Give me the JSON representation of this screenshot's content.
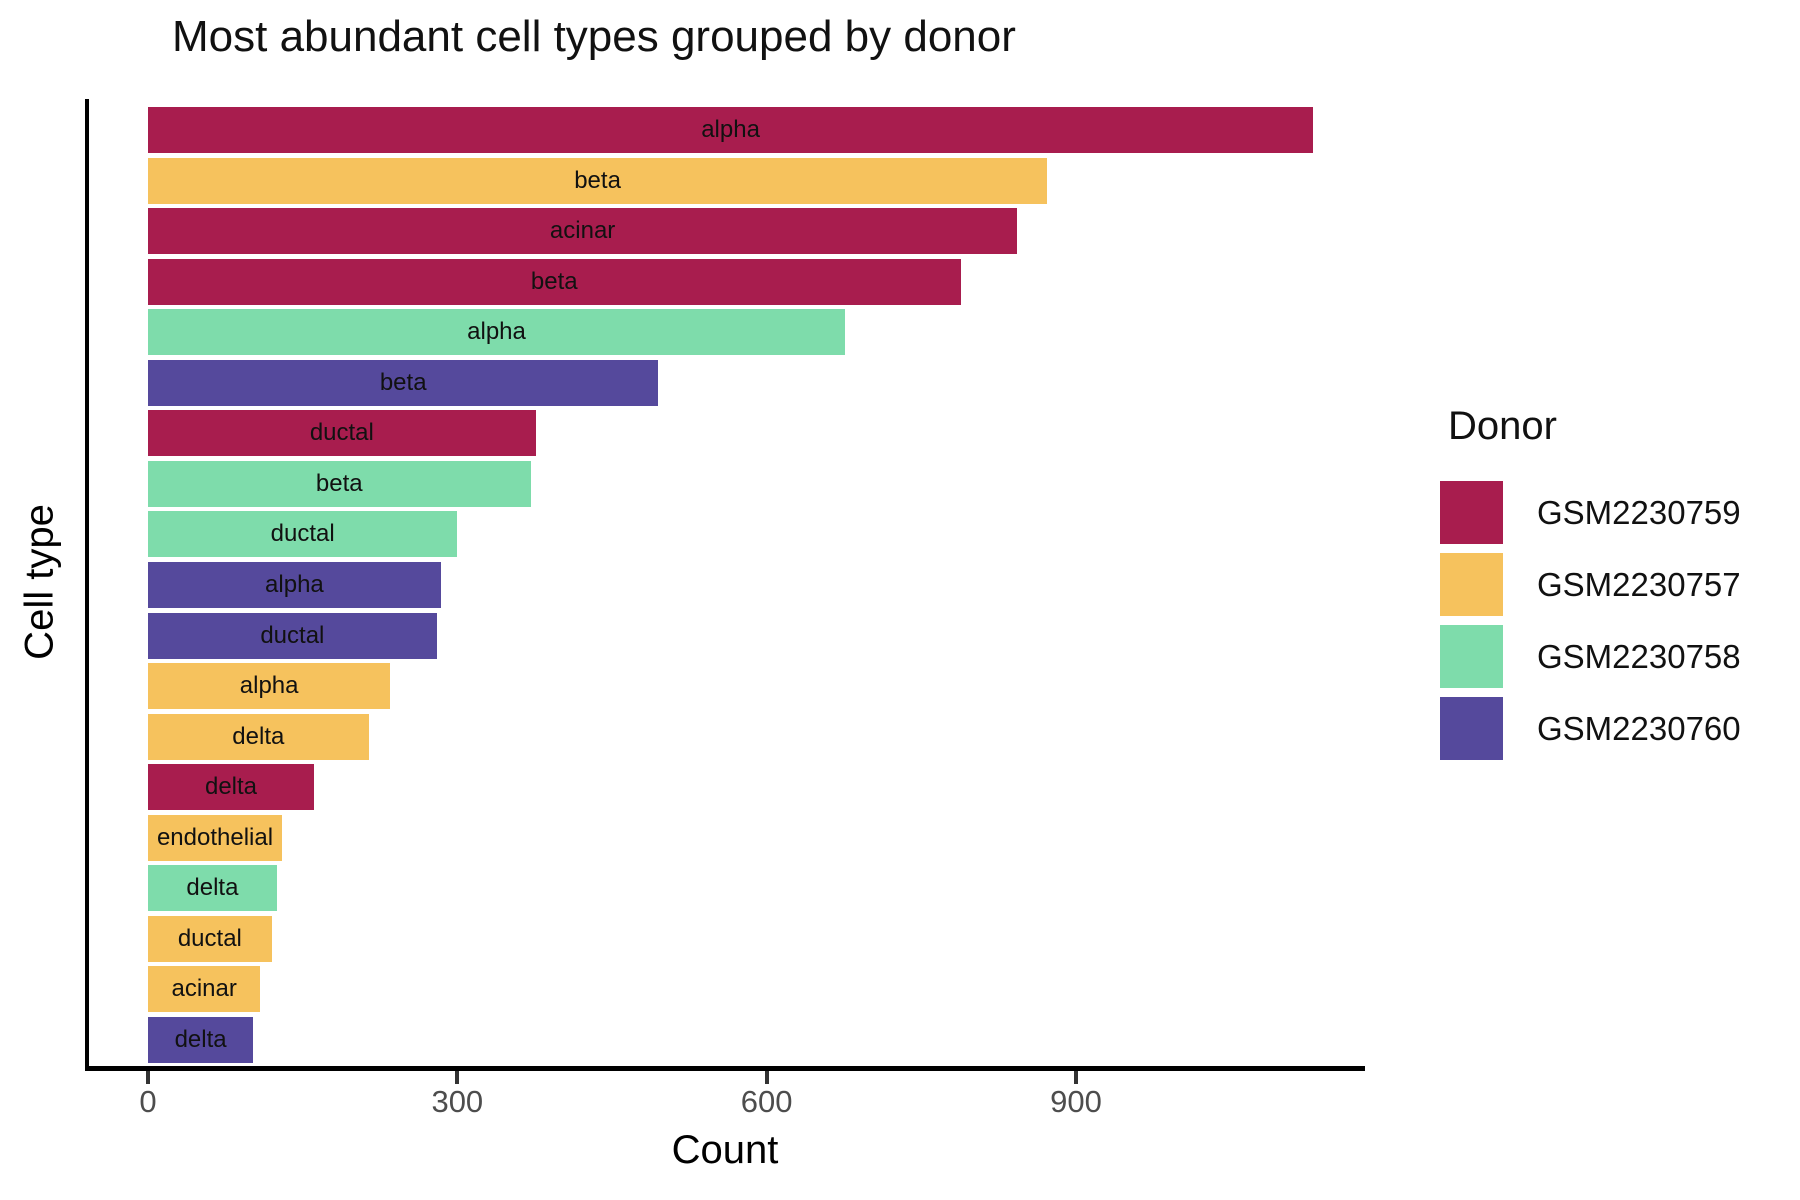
{
  "title": "Most abundant cell types grouped by donor",
  "axes": {
    "x_label": "Count",
    "y_label": "Cell type"
  },
  "legend": {
    "title": "Donor",
    "entries": [
      {
        "label": "GSM2230759",
        "color": "#A81D4E"
      },
      {
        "label": "GSM2230757",
        "color": "#F6C25D"
      },
      {
        "label": "GSM2230758",
        "color": "#7EDCAB"
      },
      {
        "label": "GSM2230760",
        "color": "#55499C"
      }
    ]
  },
  "chart_data": {
    "type": "bar",
    "orientation": "horizontal",
    "title": "Most abundant cell types grouped by donor",
    "xlabel": "Count",
    "ylabel": "Cell type",
    "xlim": [
      0,
      1180
    ],
    "x_ticks": [
      0,
      300,
      600,
      900
    ],
    "grid": false,
    "legend_position": "right",
    "series_key": "donor",
    "bars": [
      {
        "cell_type": "alpha",
        "donor": "GSM2230759",
        "count": 1130
      },
      {
        "cell_type": "beta",
        "donor": "GSM2230757",
        "count": 872
      },
      {
        "cell_type": "acinar",
        "donor": "GSM2230759",
        "count": 843
      },
      {
        "cell_type": "beta",
        "donor": "GSM2230759",
        "count": 788
      },
      {
        "cell_type": "alpha",
        "donor": "GSM2230758",
        "count": 676
      },
      {
        "cell_type": "beta",
        "donor": "GSM2230760",
        "count": 495
      },
      {
        "cell_type": "ductal",
        "donor": "GSM2230759",
        "count": 376
      },
      {
        "cell_type": "beta",
        "donor": "GSM2230758",
        "count": 371
      },
      {
        "cell_type": "ductal",
        "donor": "GSM2230758",
        "count": 300
      },
      {
        "cell_type": "alpha",
        "donor": "GSM2230760",
        "count": 284
      },
      {
        "cell_type": "ductal",
        "donor": "GSM2230760",
        "count": 280
      },
      {
        "cell_type": "alpha",
        "donor": "GSM2230757",
        "count": 235
      },
      {
        "cell_type": "delta",
        "donor": "GSM2230757",
        "count": 214
      },
      {
        "cell_type": "delta",
        "donor": "GSM2230759",
        "count": 161
      },
      {
        "cell_type": "endothelial",
        "donor": "GSM2230757",
        "count": 130
      },
      {
        "cell_type": "delta",
        "donor": "GSM2230758",
        "count": 125
      },
      {
        "cell_type": "ductal",
        "donor": "GSM2230757",
        "count": 120
      },
      {
        "cell_type": "acinar",
        "donor": "GSM2230757",
        "count": 109
      },
      {
        "cell_type": "delta",
        "donor": "GSM2230760",
        "count": 102
      }
    ]
  }
}
